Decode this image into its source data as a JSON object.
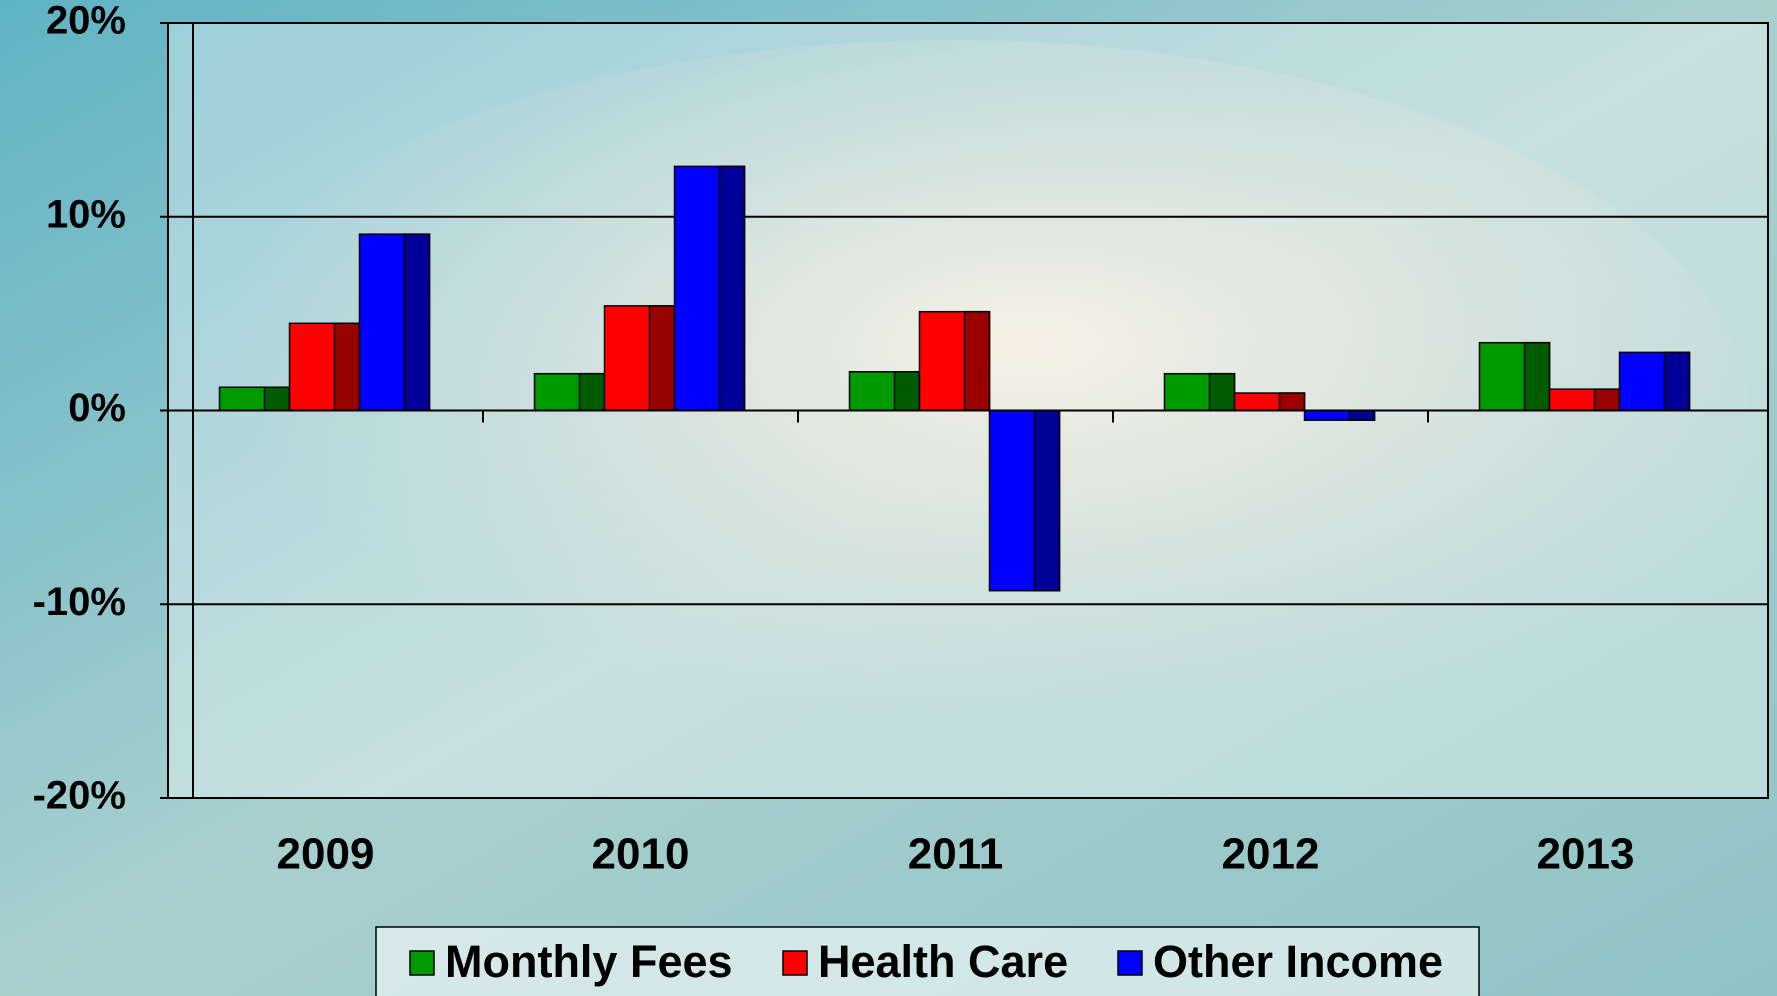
{
  "chart_data": {
    "type": "bar",
    "categories": [
      "2009",
      "2010",
      "2011",
      "2012",
      "2013"
    ],
    "series": [
      {
        "name": "Monthly Fees",
        "color": "#009900",
        "values": [
          1.2,
          1.9,
          2.0,
          1.9,
          3.5
        ]
      },
      {
        "name": "Health Care",
        "color": "#ff0000",
        "values": [
          4.5,
          5.4,
          5.1,
          0.9,
          1.1
        ]
      },
      {
        "name": "Other Income",
        "color": "#0000ff",
        "values": [
          9.1,
          12.6,
          -9.3,
          -0.5,
          3.0
        ]
      }
    ],
    "ylim": [
      -20,
      20
    ],
    "yticks": [
      {
        "value": -20,
        "label": "-20%"
      },
      {
        "value": -10,
        "label": "-10%"
      },
      {
        "value": 0,
        "label": "0%"
      },
      {
        "value": 10,
        "label": "10%"
      },
      {
        "value": 20,
        "label": "20%"
      }
    ],
    "grid": true
  }
}
